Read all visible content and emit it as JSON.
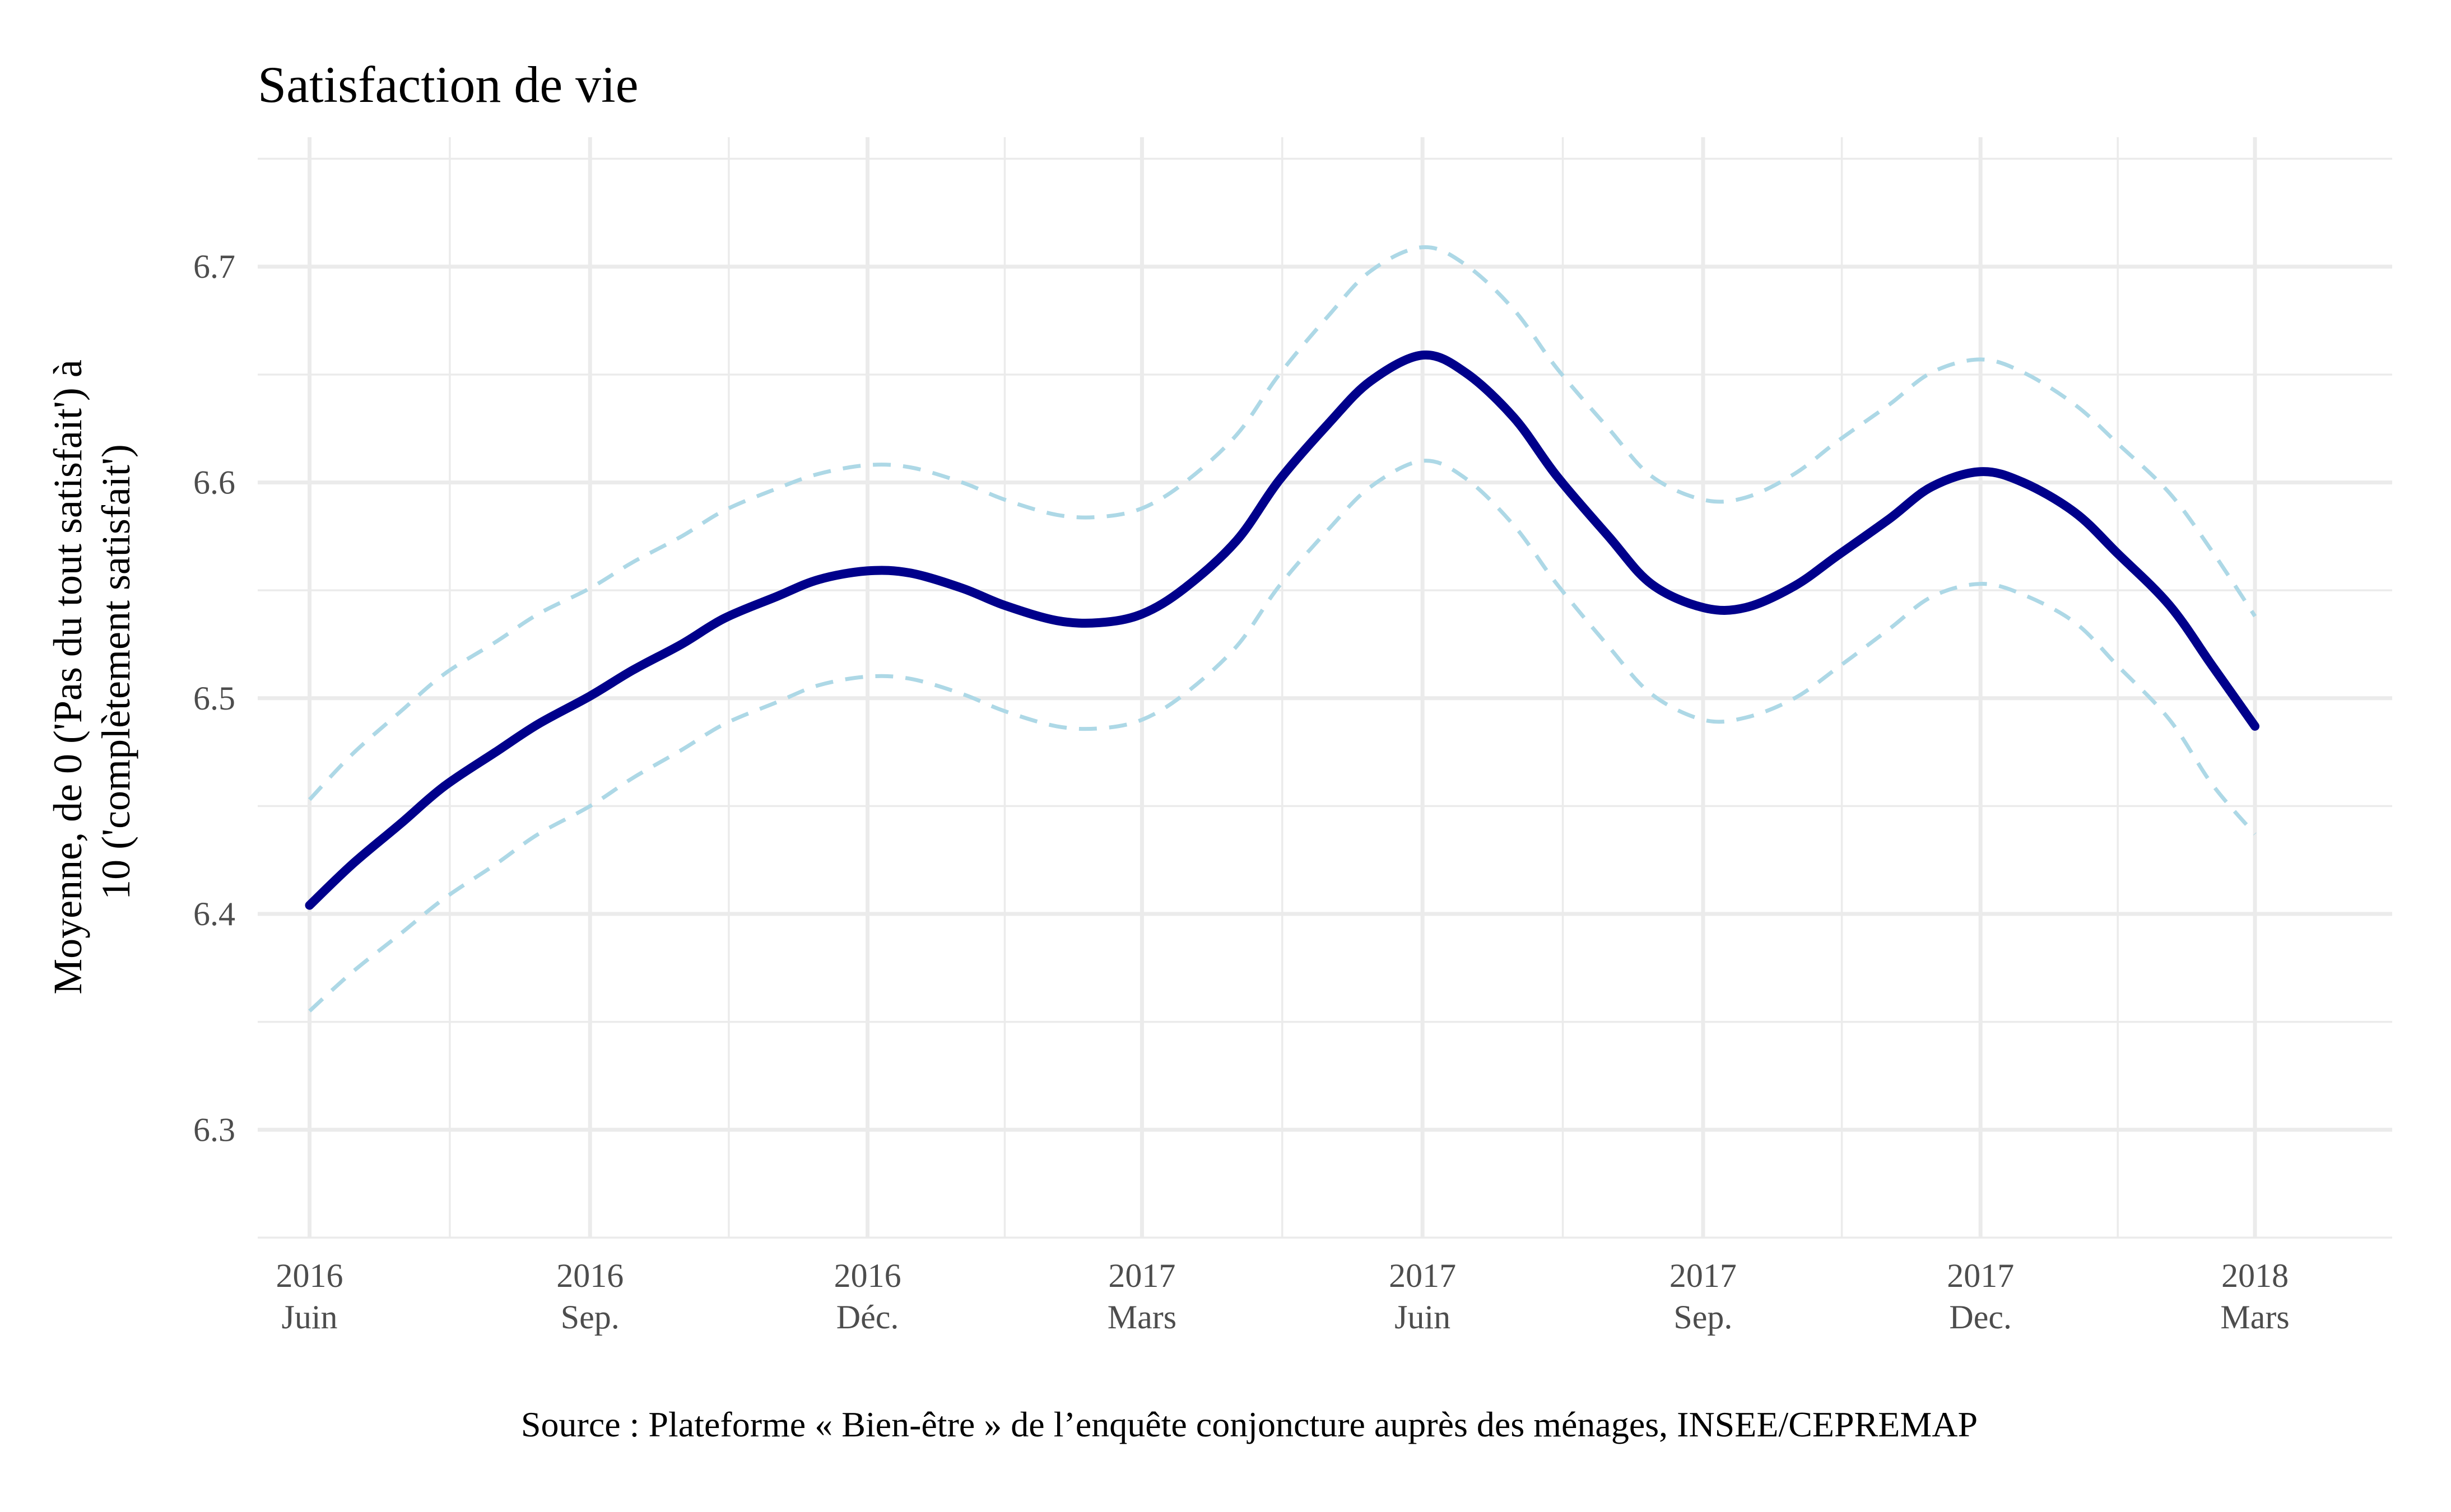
{
  "chart_data": {
    "type": "line",
    "title": "Satisfaction de vie",
    "ylabel_lines": [
      "Moyenne, de 0 ('Pas du tout satisfait') à",
      "10 ('complètement satisfait')"
    ],
    "caption": "Source : Plateforme « Bien-être » de l’enquête conjoncture auprès des ménages, INSEE/CEPREMAP",
    "ylim": [
      6.25,
      6.76
    ],
    "y_ticks": [
      "6.3",
      "6.4",
      "6.5",
      "6.6",
      "6.7"
    ],
    "x_range": [
      "2016-05-15",
      "2018-04-15"
    ],
    "x_ticks": [
      {
        "date": "2016-06-01",
        "year": "2016",
        "month": "Juin"
      },
      {
        "date": "2016-09-01",
        "year": "2016",
        "month": "Sep."
      },
      {
        "date": "2016-12-01",
        "year": "2016",
        "month": "Déc."
      },
      {
        "date": "2017-03-01",
        "year": "2017",
        "month": "Mars"
      },
      {
        "date": "2017-06-01",
        "year": "2017",
        "month": "Juin"
      },
      {
        "date": "2017-09-01",
        "year": "2017",
        "month": "Sep."
      },
      {
        "date": "2017-12-01",
        "year": "2017",
        "month": "Dec."
      },
      {
        "date": "2018-03-01",
        "year": "2018",
        "month": "Mars"
      }
    ],
    "grid": true,
    "legend": "none",
    "series": [
      {
        "role": "estimate",
        "color": "#00008b",
        "style": "solid",
        "points": [
          [
            "2016-06-01",
            6.404
          ],
          [
            "2016-06-15",
            6.423
          ],
          [
            "2016-07-01",
            6.442
          ],
          [
            "2016-07-15",
            6.459
          ],
          [
            "2016-08-01",
            6.475
          ],
          [
            "2016-08-15",
            6.488
          ],
          [
            "2016-09-01",
            6.501
          ],
          [
            "2016-09-15",
            6.513
          ],
          [
            "2016-10-01",
            6.525
          ],
          [
            "2016-10-15",
            6.537
          ],
          [
            "2016-11-01",
            6.547
          ],
          [
            "2016-11-15",
            6.555
          ],
          [
            "2016-12-01",
            6.559
          ],
          [
            "2016-12-15",
            6.558
          ],
          [
            "2017-01-01",
            6.551
          ],
          [
            "2017-01-15",
            6.543
          ],
          [
            "2017-02-01",
            6.536
          ],
          [
            "2017-02-15",
            6.535
          ],
          [
            "2017-03-01",
            6.539
          ],
          [
            "2017-03-15",
            6.551
          ],
          [
            "2017-04-01",
            6.573
          ],
          [
            "2017-04-15",
            6.601
          ],
          [
            "2017-05-01",
            6.627
          ],
          [
            "2017-05-15",
            6.647
          ],
          [
            "2017-06-01",
            6.659
          ],
          [
            "2017-06-15",
            6.651
          ],
          [
            "2017-07-01",
            6.63
          ],
          [
            "2017-07-15",
            6.603
          ],
          [
            "2017-08-01",
            6.575
          ],
          [
            "2017-08-15",
            6.553
          ],
          [
            "2017-09-01",
            6.542
          ],
          [
            "2017-09-15",
            6.542
          ],
          [
            "2017-10-01",
            6.552
          ],
          [
            "2017-10-15",
            6.566
          ],
          [
            "2017-11-01",
            6.583
          ],
          [
            "2017-11-15",
            6.598
          ],
          [
            "2017-12-01",
            6.605
          ],
          [
            "2017-12-15",
            6.6
          ],
          [
            "2018-01-01",
            6.586
          ],
          [
            "2018-01-15",
            6.567
          ],
          [
            "2018-02-01",
            6.543
          ],
          [
            "2018-02-15",
            6.515
          ],
          [
            "2018-03-01",
            6.487
          ]
        ]
      },
      {
        "role": "upper bound",
        "color": "#add8e6",
        "style": "dashed",
        "points": [
          [
            "2016-06-01",
            6.453
          ],
          [
            "2016-06-15",
            6.474
          ],
          [
            "2016-07-01",
            6.494
          ],
          [
            "2016-07-15",
            6.511
          ],
          [
            "2016-08-01",
            6.526
          ],
          [
            "2016-08-15",
            6.539
          ],
          [
            "2016-09-01",
            6.551
          ],
          [
            "2016-09-15",
            6.563
          ],
          [
            "2016-10-01",
            6.575
          ],
          [
            "2016-10-15",
            6.587
          ],
          [
            "2016-11-01",
            6.597
          ],
          [
            "2016-11-15",
            6.604
          ],
          [
            "2016-12-01",
            6.608
          ],
          [
            "2016-12-15",
            6.607
          ],
          [
            "2017-01-01",
            6.6
          ],
          [
            "2017-01-15",
            6.592
          ],
          [
            "2017-02-01",
            6.585
          ],
          [
            "2017-02-15",
            6.584
          ],
          [
            "2017-03-01",
            6.588
          ],
          [
            "2017-03-15",
            6.6
          ],
          [
            "2017-04-01",
            6.622
          ],
          [
            "2017-04-15",
            6.65
          ],
          [
            "2017-05-01",
            6.677
          ],
          [
            "2017-05-15",
            6.698
          ],
          [
            "2017-06-01",
            6.709
          ],
          [
            "2017-06-15",
            6.701
          ],
          [
            "2017-07-01",
            6.68
          ],
          [
            "2017-07-15",
            6.653
          ],
          [
            "2017-08-01",
            6.625
          ],
          [
            "2017-08-15",
            6.603
          ],
          [
            "2017-09-01",
            6.592
          ],
          [
            "2017-09-15",
            6.593
          ],
          [
            "2017-10-01",
            6.604
          ],
          [
            "2017-10-15",
            6.619
          ],
          [
            "2017-11-01",
            6.636
          ],
          [
            "2017-11-15",
            6.651
          ],
          [
            "2017-12-01",
            6.657
          ],
          [
            "2017-12-15",
            6.651
          ],
          [
            "2018-01-01",
            6.636
          ],
          [
            "2018-01-15",
            6.618
          ],
          [
            "2018-02-01",
            6.595
          ],
          [
            "2018-02-15",
            6.568
          ],
          [
            "2018-03-01",
            6.538
          ]
        ]
      },
      {
        "role": "lower bound",
        "color": "#add8e6",
        "style": "dashed",
        "points": [
          [
            "2016-06-01",
            6.355
          ],
          [
            "2016-06-15",
            6.373
          ],
          [
            "2016-07-01",
            6.391
          ],
          [
            "2016-07-15",
            6.407
          ],
          [
            "2016-08-01",
            6.423
          ],
          [
            "2016-08-15",
            6.437
          ],
          [
            "2016-09-01",
            6.45
          ],
          [
            "2016-09-15",
            6.463
          ],
          [
            "2016-10-01",
            6.476
          ],
          [
            "2016-10-15",
            6.488
          ],
          [
            "2016-11-01",
            6.498
          ],
          [
            "2016-11-15",
            6.506
          ],
          [
            "2016-12-01",
            6.51
          ],
          [
            "2016-12-15",
            6.509
          ],
          [
            "2017-01-01",
            6.502
          ],
          [
            "2017-01-15",
            6.494
          ],
          [
            "2017-02-01",
            6.487
          ],
          [
            "2017-02-15",
            6.486
          ],
          [
            "2017-03-01",
            6.49
          ],
          [
            "2017-03-15",
            6.502
          ],
          [
            "2017-04-01",
            6.524
          ],
          [
            "2017-04-15",
            6.552
          ],
          [
            "2017-05-01",
            6.578
          ],
          [
            "2017-05-15",
            6.598
          ],
          [
            "2017-06-01",
            6.61
          ],
          [
            "2017-06-15",
            6.602
          ],
          [
            "2017-07-01",
            6.58
          ],
          [
            "2017-07-15",
            6.553
          ],
          [
            "2017-08-01",
            6.524
          ],
          [
            "2017-08-15",
            6.502
          ],
          [
            "2017-09-01",
            6.49
          ],
          [
            "2017-09-15",
            6.491
          ],
          [
            "2017-10-01",
            6.5
          ],
          [
            "2017-10-15",
            6.514
          ],
          [
            "2017-11-01",
            6.532
          ],
          [
            "2017-11-15",
            6.547
          ],
          [
            "2017-12-01",
            6.553
          ],
          [
            "2017-12-15",
            6.548
          ],
          [
            "2018-01-01",
            6.535
          ],
          [
            "2018-01-15",
            6.515
          ],
          [
            "2018-02-01",
            6.49
          ],
          [
            "2018-02-15",
            6.46
          ],
          [
            "2018-03-01",
            6.437
          ]
        ]
      }
    ]
  }
}
